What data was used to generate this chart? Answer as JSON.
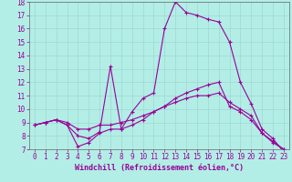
{
  "xlabel": "Windchill (Refroidissement éolien,°C)",
  "background_color": "#b2eee6",
  "grid_color": "#a0d8d0",
  "line_color": "#990099",
  "spine_color": "#666666",
  "xlim": [
    -0.5,
    23.5
  ],
  "ylim": [
    7,
    18
  ],
  "xticks": [
    0,
    1,
    2,
    3,
    4,
    5,
    6,
    7,
    8,
    9,
    10,
    11,
    12,
    13,
    14,
    15,
    16,
    17,
    18,
    19,
    20,
    21,
    22,
    23
  ],
  "yticks": [
    7,
    8,
    9,
    10,
    11,
    12,
    13,
    14,
    15,
    16,
    17,
    18
  ],
  "line1_x": [
    0,
    1,
    2,
    3,
    4,
    5,
    6,
    7,
    8,
    9,
    10,
    11,
    12,
    13,
    14,
    15,
    16,
    17,
    18,
    19,
    20,
    21,
    22,
    23
  ],
  "line1_y": [
    8.8,
    9.0,
    9.2,
    8.8,
    8.0,
    7.8,
    8.3,
    13.2,
    8.5,
    9.8,
    10.8,
    11.2,
    16.0,
    18.0,
    17.2,
    17.0,
    16.7,
    16.5,
    15.0,
    12.0,
    10.4,
    8.5,
    7.8,
    6.8
  ],
  "line2_x": [
    0,
    1,
    2,
    3,
    4,
    5,
    6,
    7,
    8,
    9,
    10,
    11,
    12,
    13,
    14,
    15,
    16,
    17,
    18,
    19,
    20,
    21,
    22,
    23
  ],
  "line2_y": [
    8.8,
    9.0,
    9.2,
    8.8,
    7.2,
    7.5,
    8.2,
    8.5,
    8.5,
    8.8,
    9.2,
    9.8,
    10.2,
    10.8,
    11.2,
    11.5,
    11.8,
    12.0,
    10.2,
    9.8,
    9.2,
    8.2,
    7.6,
    7.0
  ],
  "line3_x": [
    0,
    1,
    2,
    3,
    4,
    5,
    6,
    7,
    8,
    9,
    10,
    11,
    12,
    13,
    14,
    15,
    16,
    17,
    18,
    19,
    20,
    21,
    22,
    23
  ],
  "line3_y": [
    8.8,
    9.0,
    9.2,
    9.0,
    8.5,
    8.5,
    8.8,
    8.8,
    9.0,
    9.2,
    9.5,
    9.8,
    10.2,
    10.5,
    10.8,
    11.0,
    11.0,
    11.2,
    10.5,
    10.0,
    9.5,
    8.2,
    7.5,
    7.0
  ],
  "tick_fontsize": 5.5,
  "label_fontsize": 6.0
}
